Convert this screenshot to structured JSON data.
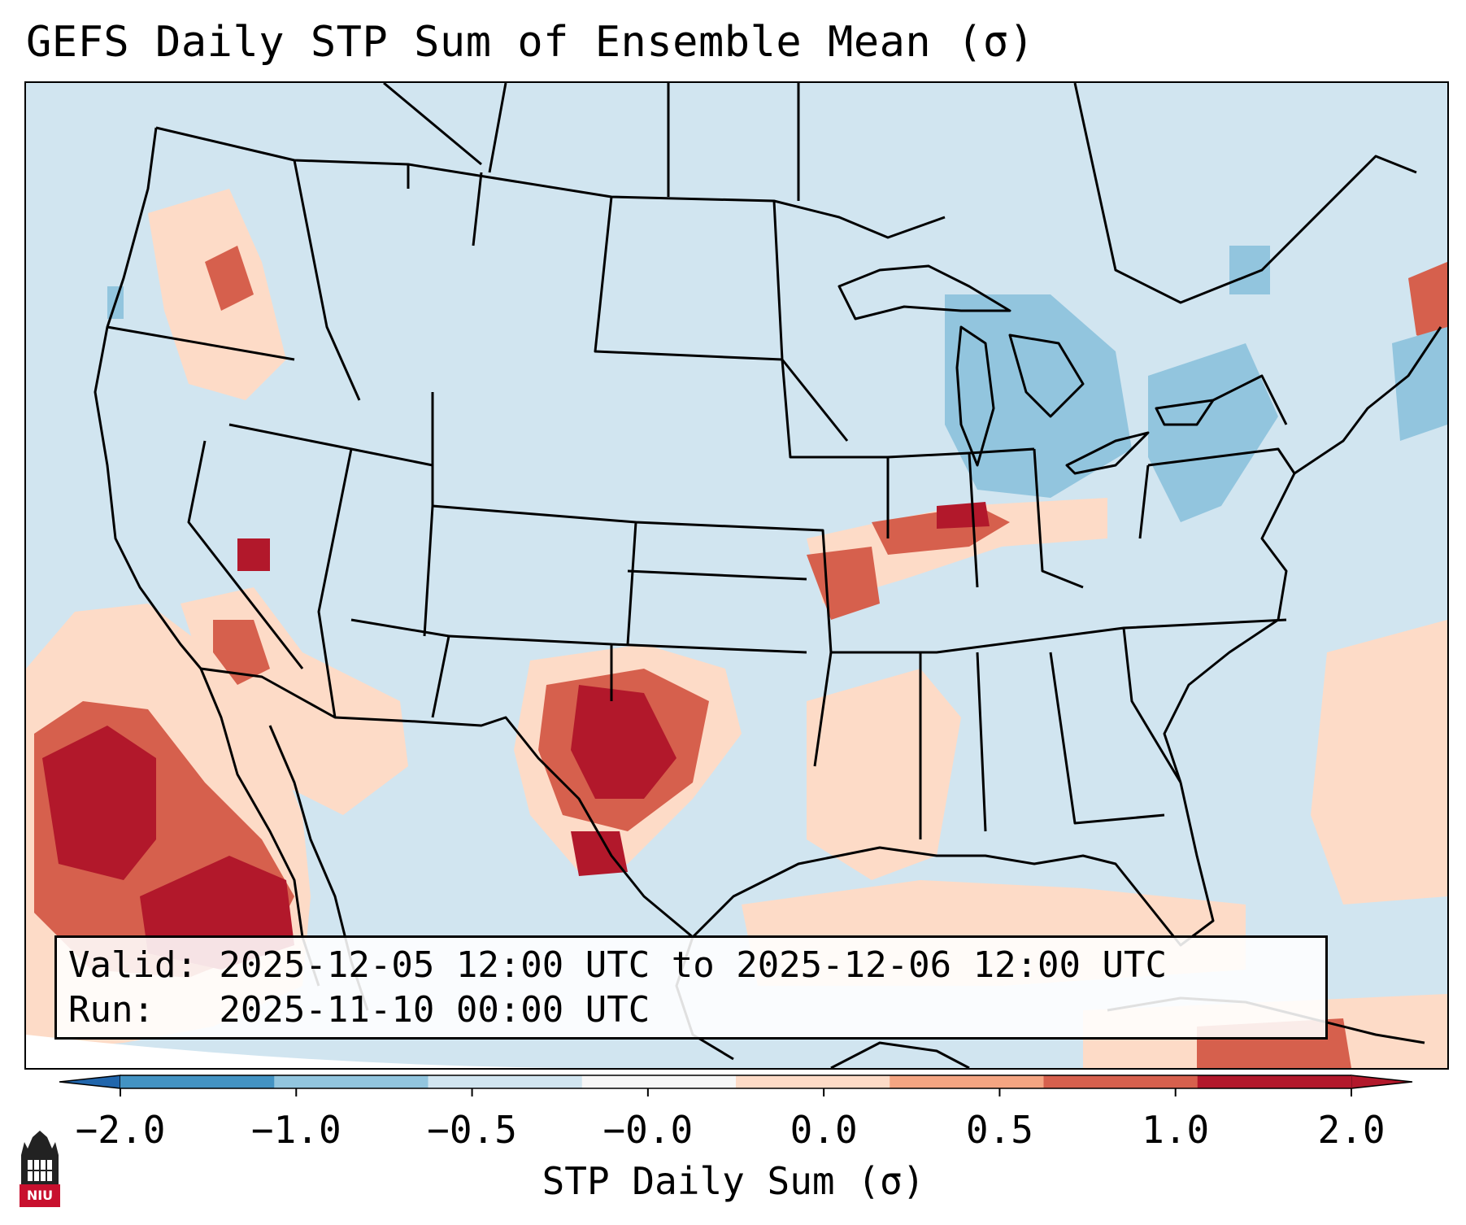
{
  "title": "GEFS Daily STP Sum of Ensemble Mean (σ)",
  "info": {
    "valid_line": "Valid: 2025-12-05 12:00 UTC to 2025-12-06 12:00 UTC",
    "run_line": "Run:   2025-11-10 00:00 UTC"
  },
  "colorbar": {
    "label": "STP Daily Sum (σ)",
    "ticks": [
      "−2.0",
      "−1.0",
      "−0.5",
      "−0.0",
      "0.0",
      "0.5",
      "1.0",
      "2.0"
    ],
    "colors": [
      "#4393c3",
      "#92c5de",
      "#d1e5f0",
      "#f7f7f7",
      "#fddbc7",
      "#f4a582",
      "#d6604d",
      "#b2182b"
    ],
    "extend_low_color": "#2166ac",
    "extend_high_color": "#b2182b"
  },
  "logo": {
    "text": "NIU"
  },
  "colors": {
    "map_background": "#d1e5f0",
    "boundary": "#000000"
  }
}
